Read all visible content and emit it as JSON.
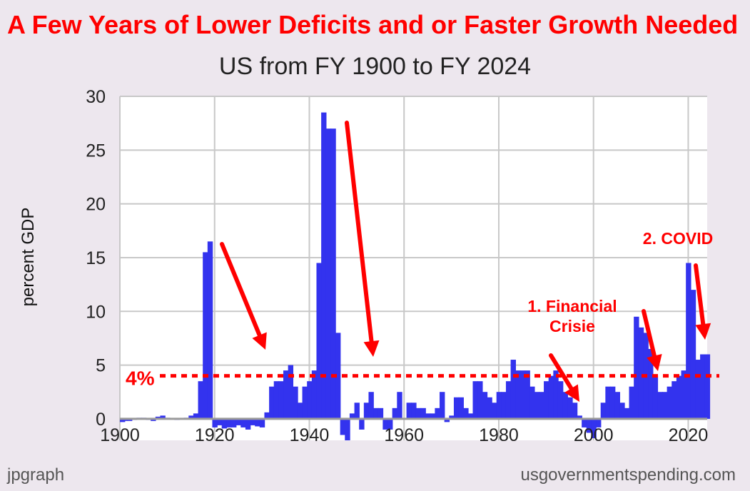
{
  "chart_data": {
    "type": "area",
    "title": "US from FY 1900 to FY 2024",
    "ylabel": "percent GDP",
    "xlim": [
      1900,
      2024
    ],
    "ylim": [
      -2,
      30
    ],
    "x_ticks": [
      1900,
      1920,
      1940,
      1960,
      1980,
      2000,
      2020
    ],
    "y_ticks": [
      0,
      5,
      10,
      15,
      20,
      25,
      30
    ],
    "grid": true,
    "color": "#3333ee",
    "x": [
      1900,
      1901,
      1902,
      1903,
      1904,
      1905,
      1906,
      1907,
      1908,
      1909,
      1910,
      1911,
      1912,
      1913,
      1914,
      1915,
      1916,
      1917,
      1918,
      1919,
      1920,
      1921,
      1922,
      1923,
      1924,
      1925,
      1926,
      1927,
      1928,
      1929,
      1930,
      1931,
      1932,
      1933,
      1934,
      1935,
      1936,
      1937,
      1938,
      1939,
      1940,
      1941,
      1942,
      1943,
      1944,
      1945,
      1946,
      1947,
      1948,
      1949,
      1950,
      1951,
      1952,
      1953,
      1954,
      1955,
      1956,
      1957,
      1958,
      1959,
      1960,
      1961,
      1962,
      1963,
      1964,
      1965,
      1966,
      1967,
      1968,
      1969,
      1970,
      1971,
      1972,
      1973,
      1974,
      1975,
      1976,
      1977,
      1978,
      1979,
      1980,
      1981,
      1982,
      1983,
      1984,
      1985,
      1986,
      1987,
      1988,
      1989,
      1990,
      1991,
      1992,
      1993,
      1994,
      1995,
      1996,
      1997,
      1998,
      1999,
      2000,
      2001,
      2002,
      2003,
      2004,
      2005,
      2006,
      2007,
      2008,
      2009,
      2010,
      2011,
      2012,
      2013,
      2014,
      2015,
      2016,
      2017,
      2018,
      2019,
      2020,
      2021,
      2022,
      2023,
      2024
    ],
    "values": [
      -0.3,
      -0.2,
      -0.2,
      -0.1,
      0.1,
      0.1,
      -0.1,
      -0.2,
      0.2,
      0.3,
      0.1,
      0.0,
      -0.1,
      0.0,
      0.1,
      0.3,
      0.5,
      3.5,
      15.5,
      16.5,
      -0.8,
      -0.6,
      -0.9,
      -0.8,
      -0.8,
      -0.6,
      -0.8,
      -1.0,
      -0.6,
      -0.7,
      -0.8,
      0.6,
      3.0,
      3.5,
      3.5,
      4.5,
      5.0,
      3.0,
      1.5,
      3.0,
      3.5,
      4.5,
      14.5,
      28.5,
      27.0,
      27.0,
      8.0,
      -1.5,
      -2.0,
      0.5,
      1.5,
      -1.0,
      1.5,
      2.5,
      1.0,
      1.0,
      -1.0,
      -1.0,
      1.0,
      2.5,
      0.0,
      1.5,
      1.5,
      1.0,
      1.0,
      0.5,
      0.5,
      1.0,
      2.5,
      -0.3,
      0.3,
      2.0,
      2.0,
      1.0,
      0.5,
      3.5,
      3.5,
      2.5,
      2.0,
      1.5,
      2.5,
      2.5,
      3.5,
      5.5,
      4.5,
      4.5,
      4.5,
      3.0,
      2.5,
      2.5,
      3.5,
      4.0,
      4.5,
      3.5,
      2.5,
      2.0,
      1.5,
      0.3,
      -0.8,
      -1.3,
      -1.8,
      -0.8,
      1.5,
      3.0,
      3.0,
      2.5,
      1.5,
      1.0,
      3.0,
      9.5,
      8.5,
      8.0,
      6.5,
      4.0,
      2.5,
      2.5,
      3.0,
      3.5,
      4.0,
      4.5,
      14.5,
      12.0,
      5.5,
      6.0,
      6.0
    ]
  },
  "overlay": {
    "headline": "A Few Years of Lower Deficits and or Faster Growth Needed",
    "threshold_label": "4%",
    "threshold_value": 4,
    "annotations": [
      {
        "id": "financial-crisis",
        "lines": [
          "1. Financial",
          "Crisie"
        ]
      },
      {
        "id": "covid",
        "lines": [
          "2. COVID"
        ]
      }
    ],
    "accent_color": "#ff0000"
  },
  "footer": {
    "left": "jpgraph",
    "right": "usgovernmentspending.com"
  }
}
